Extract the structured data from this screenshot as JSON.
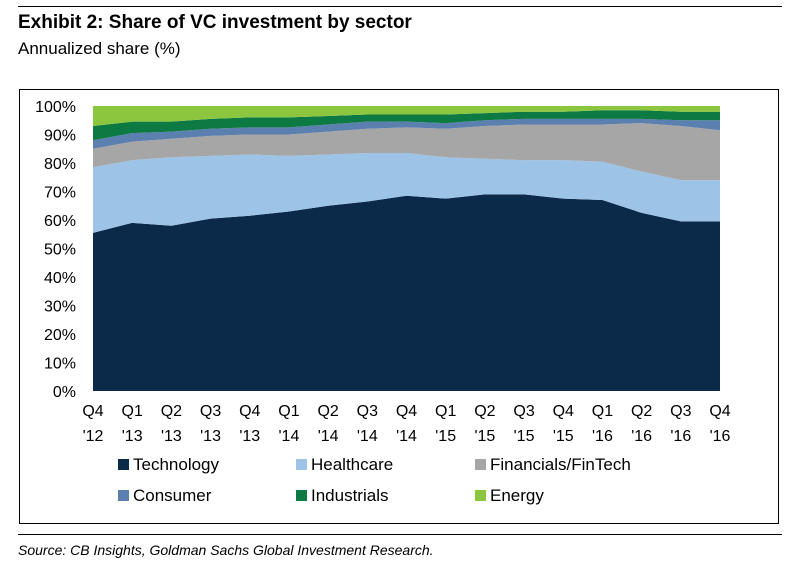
{
  "header": {
    "title": "Exhibit 2: Share of VC investment by sector",
    "subtitle": "Annualized share (%)"
  },
  "footer": {
    "source": "Source: CB Insights, Goldman Sachs Global Investment Research."
  },
  "chart_data": {
    "type": "area",
    "stacked": true,
    "x": [
      "Q4 '12",
      "Q1 '13",
      "Q2 '13",
      "Q3 '13",
      "Q4 '13",
      "Q1 '14",
      "Q2 '14",
      "Q3 '14",
      "Q4 '14",
      "Q1 '15",
      "Q2 '15",
      "Q3 '15",
      "Q4 '15",
      "Q1 '16",
      "Q2 '16",
      "Q3 '16",
      "Q4 '16"
    ],
    "x_tick_lines": [
      [
        "Q4",
        "'12"
      ],
      [
        "Q1",
        "'13"
      ],
      [
        "Q2",
        "'13"
      ],
      [
        "Q3",
        "'13"
      ],
      [
        "Q4",
        "'13"
      ],
      [
        "Q1",
        "'14"
      ],
      [
        "Q2",
        "'14"
      ],
      [
        "Q3",
        "'14"
      ],
      [
        "Q4",
        "'14"
      ],
      [
        "Q1",
        "'15"
      ],
      [
        "Q2",
        "'15"
      ],
      [
        "Q3",
        "'15"
      ],
      [
        "Q4",
        "'15"
      ],
      [
        "Q1",
        "'16"
      ],
      [
        "Q2",
        "'16"
      ],
      [
        "Q3",
        "'16"
      ],
      [
        "Q4",
        "'16"
      ]
    ],
    "y_ticks": [
      "0%",
      "10%",
      "20%",
      "30%",
      "40%",
      "50%",
      "60%",
      "70%",
      "80%",
      "90%",
      "100%"
    ],
    "ylim": [
      0,
      100
    ],
    "grid": false,
    "legend_position": "bottom",
    "series": [
      {
        "name": "Technology",
        "color": "#0b2a4a",
        "values": [
          55.5,
          59,
          58,
          60.5,
          61.5,
          63,
          65,
          66.5,
          68.5,
          67.5,
          69,
          69,
          67.5,
          67,
          62.5,
          59.5,
          59.5
        ]
      },
      {
        "name": "Healthcare",
        "color": "#9dc3e6",
        "values": [
          23,
          22,
          24,
          22,
          21.5,
          19.5,
          18,
          17,
          15,
          14.5,
          12.5,
          12,
          13.5,
          13.5,
          14.5,
          14.5,
          14.5
        ]
      },
      {
        "name": "Financials/FinTech",
        "color": "#a6a6a6",
        "values": [
          6.5,
          6.5,
          6.5,
          7,
          7,
          7.5,
          8,
          8.5,
          9,
          10,
          11.5,
          12.5,
          12.5,
          13,
          17,
          19,
          17.5
        ]
      },
      {
        "name": "Consumer",
        "color": "#5b7fae",
        "values": [
          3,
          3,
          2.5,
          2.5,
          2.5,
          2.5,
          2.5,
          2.5,
          2,
          2,
          2,
          2,
          2,
          2,
          1.5,
          2,
          3.5
        ]
      },
      {
        "name": "Industrials",
        "color": "#0d7a44",
        "values": [
          5,
          4,
          3.5,
          3.5,
          3.5,
          3.5,
          3,
          2.5,
          2.5,
          3,
          2.5,
          2.5,
          2.5,
          3,
          3,
          3,
          3
        ]
      },
      {
        "name": "Energy",
        "color": "#8cc63f",
        "values": [
          7,
          5.5,
          5.5,
          4.5,
          4,
          4,
          3.5,
          3,
          3,
          3,
          2.5,
          2,
          2,
          1.5,
          1.5,
          2,
          2
        ]
      }
    ]
  }
}
